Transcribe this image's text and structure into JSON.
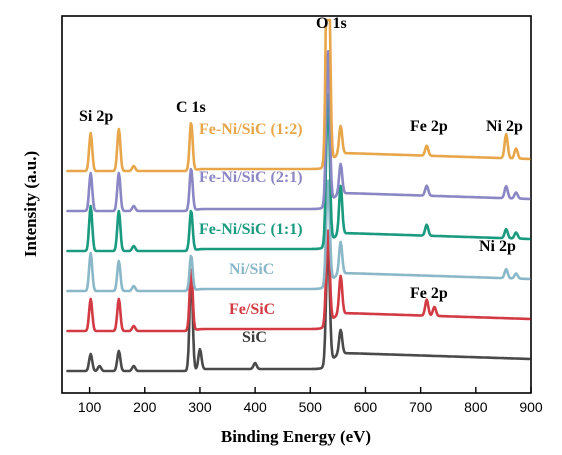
{
  "chart_data": {
    "type": "line",
    "xlabel": "Binding Energy (eV)",
    "ylabel": "Intensity (a.u.)",
    "xlim": [
      50,
      900
    ],
    "xticks": [
      100,
      200,
      300,
      400,
      500,
      600,
      700,
      800,
      900
    ],
    "y_ticks_shown": false,
    "series": [
      {
        "name": "SiC",
        "color": "#4a4a4a",
        "baseline": 0.0,
        "peaks": [
          [
            102,
            0.17
          ],
          [
            118,
            0.05
          ],
          [
            153,
            0.2
          ],
          [
            180,
            0.05
          ],
          [
            284,
            0.98
          ],
          [
            300,
            0.2
          ],
          [
            400,
            0.06
          ],
          [
            532,
            1.23
          ],
          [
            555,
            0.24
          ]
        ]
      },
      {
        "name": "Fe/SiC",
        "color": "#d23b43",
        "baseline": 0.4,
        "peaks": [
          [
            102,
            0.32
          ],
          [
            153,
            0.32
          ],
          [
            180,
            0.05
          ],
          [
            284,
            0.62
          ],
          [
            532,
            0.95
          ],
          [
            555,
            0.38
          ],
          [
            711,
            0.16
          ],
          [
            725,
            0.09
          ]
        ]
      },
      {
        "name": "Ni/SiC",
        "color": "#8ab8c8",
        "baseline": 0.8,
        "peaks": [
          [
            102,
            0.38
          ],
          [
            153,
            0.3
          ],
          [
            180,
            0.05
          ],
          [
            284,
            0.35
          ],
          [
            532,
            1.05
          ],
          [
            555,
            0.32
          ],
          [
            855,
            0.09
          ],
          [
            873,
            0.05
          ]
        ]
      },
      {
        "name": "Fe-Ni/SiC (1:1)",
        "color": "#1a9a7f",
        "baseline": 1.2,
        "peaks": [
          [
            102,
            0.45
          ],
          [
            153,
            0.4
          ],
          [
            180,
            0.05
          ],
          [
            284,
            0.4
          ],
          [
            532,
            1.52
          ],
          [
            555,
            0.48
          ],
          [
            711,
            0.11
          ],
          [
            855,
            0.09
          ],
          [
            873,
            0.06
          ]
        ]
      },
      {
        "name": "Fe-Ni/SiC (2:1)",
        "color": "#8a87c4",
        "baseline": 1.6,
        "peaks": [
          [
            102,
            0.38
          ],
          [
            153,
            0.38
          ],
          [
            180,
            0.05
          ],
          [
            284,
            0.42
          ],
          [
            532,
            1.55
          ],
          [
            555,
            0.3
          ],
          [
            711,
            0.1
          ],
          [
            855,
            0.12
          ],
          [
            873,
            0.06
          ]
        ]
      },
      {
        "name": "Fe-Ni/SiC (1:2)",
        "color": "#e8a64a",
        "baseline": 2.0,
        "peaks": [
          [
            102,
            0.38
          ],
          [
            153,
            0.42
          ],
          [
            180,
            0.05
          ],
          [
            284,
            0.48
          ],
          [
            532,
            3.0
          ],
          [
            555,
            0.28
          ],
          [
            711,
            0.1
          ],
          [
            855,
            0.24
          ],
          [
            873,
            0.1
          ]
        ]
      }
    ],
    "annotations": [
      "O 1s",
      "C 1s",
      "Si 2p",
      "Fe 2p",
      "Ni 2p",
      "Ni 2p",
      "Fe 2p"
    ],
    "grid": false,
    "legend": "inline labels"
  }
}
